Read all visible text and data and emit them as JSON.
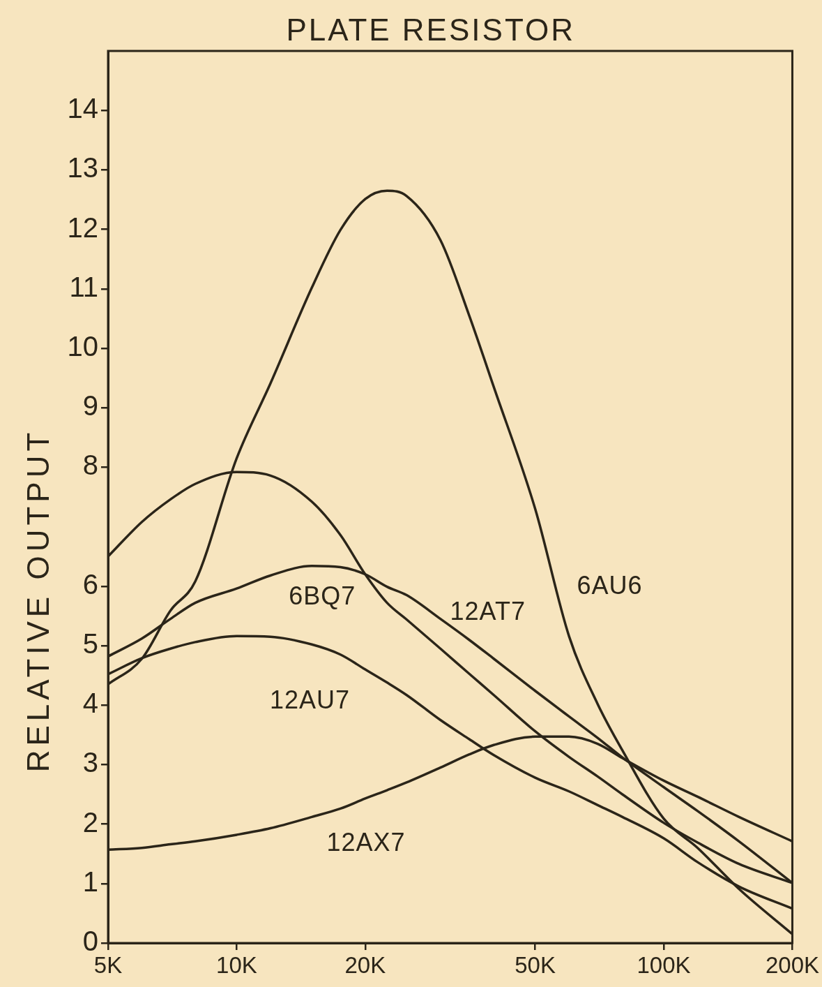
{
  "chart_data": {
    "type": "line",
    "title": "PLATE RESISTOR",
    "ylabel": "RELATIVE OUTPUT",
    "log": "x",
    "x": [
      5000,
      6000,
      7000,
      8000,
      10000,
      12000,
      15000,
      17500,
      20000,
      22500,
      25000,
      30000,
      35000,
      40000,
      50000,
      60000,
      70000,
      80000,
      100000,
      120000,
      150000,
      200000
    ],
    "xlim": [
      5000,
      200000
    ],
    "xticks": [
      {
        "value": 5000,
        "label": "5K"
      },
      {
        "value": 10000,
        "label": "10K"
      },
      {
        "value": 20000,
        "label": "20K"
      },
      {
        "value": 50000,
        "label": "50K"
      },
      {
        "value": 100000,
        "label": "100K"
      },
      {
        "value": 200000,
        "label": "200K"
      }
    ],
    "ylim": [
      0,
      15
    ],
    "yticks": [
      0,
      1,
      2,
      3,
      4,
      5,
      6,
      8,
      9,
      10,
      11,
      12,
      13,
      14
    ],
    "series": [
      {
        "name": "6AU6",
        "color": "#2b2519",
        "values": [
          4.35,
          4.78,
          5.59,
          6.08,
          8.15,
          9.41,
          11.02,
          11.99,
          12.51,
          12.65,
          12.56,
          11.82,
          10.56,
          9.35,
          7.3,
          5.16,
          4.02,
          3.24,
          2.09,
          1.6,
          0.91,
          0.15
        ]
      },
      {
        "name": "6BQ7",
        "color": "#2b2519",
        "values": [
          6.5,
          7.08,
          7.46,
          7.72,
          7.92,
          7.86,
          7.42,
          6.86,
          6.2,
          5.72,
          5.44,
          4.95,
          4.53,
          4.17,
          3.56,
          3.13,
          2.8,
          2.5,
          2.02,
          1.69,
          1.33,
          1.01
        ]
      },
      {
        "name": "12AT7",
        "color": "#2b2519",
        "values": [
          4.82,
          5.12,
          5.45,
          5.72,
          5.96,
          6.18,
          6.34,
          6.32,
          6.2,
          5.99,
          5.85,
          5.45,
          5.1,
          4.78,
          4.24,
          3.81,
          3.45,
          3.12,
          2.62,
          2.22,
          1.71,
          1.01
        ]
      },
      {
        "name": "12AU7",
        "color": "#2b2519",
        "values": [
          4.52,
          4.79,
          4.95,
          5.06,
          5.16,
          5.15,
          5.02,
          4.85,
          4.6,
          4.38,
          4.17,
          3.75,
          3.43,
          3.16,
          2.78,
          2.55,
          2.32,
          2.12,
          1.76,
          1.36,
          0.95,
          0.58
        ]
      },
      {
        "name": "12AX7",
        "color": "#2b2519",
        "values": [
          1.57,
          1.6,
          1.66,
          1.71,
          1.82,
          1.93,
          2.12,
          2.26,
          2.43,
          2.57,
          2.7,
          2.95,
          3.17,
          3.33,
          3.47,
          3.47,
          3.35,
          3.11,
          2.73,
          2.46,
          2.12,
          1.71
        ]
      }
    ]
  }
}
